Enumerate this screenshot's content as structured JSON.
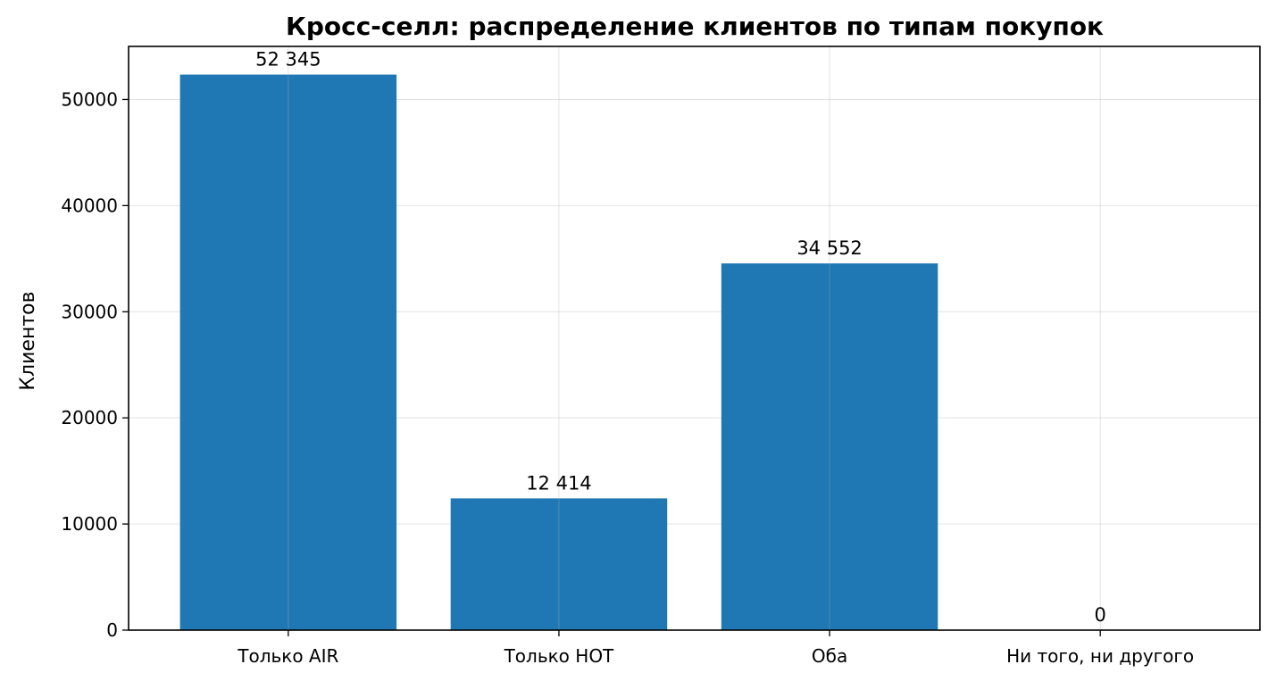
{
  "chart_data": {
    "type": "bar",
    "title": "Кросс-селл: распределение клиентов по типам покупок",
    "xlabel": "",
    "ylabel": "Клиентов",
    "categories": [
      "Только AIR",
      "Только HOT",
      "Оба",
      "Ни того, ни другого"
    ],
    "values": [
      52345,
      12414,
      34552,
      0
    ],
    "data_labels": [
      "52 345",
      "12 414",
      "34 552",
      "0"
    ],
    "ylim": [
      0,
      55000
    ],
    "yticks": [
      0,
      10000,
      20000,
      30000,
      40000,
      50000
    ],
    "ytick_labels": [
      "0",
      "10000",
      "20000",
      "30000",
      "40000",
      "50000"
    ],
    "grid": true,
    "bar_color": "#1f77b4"
  }
}
